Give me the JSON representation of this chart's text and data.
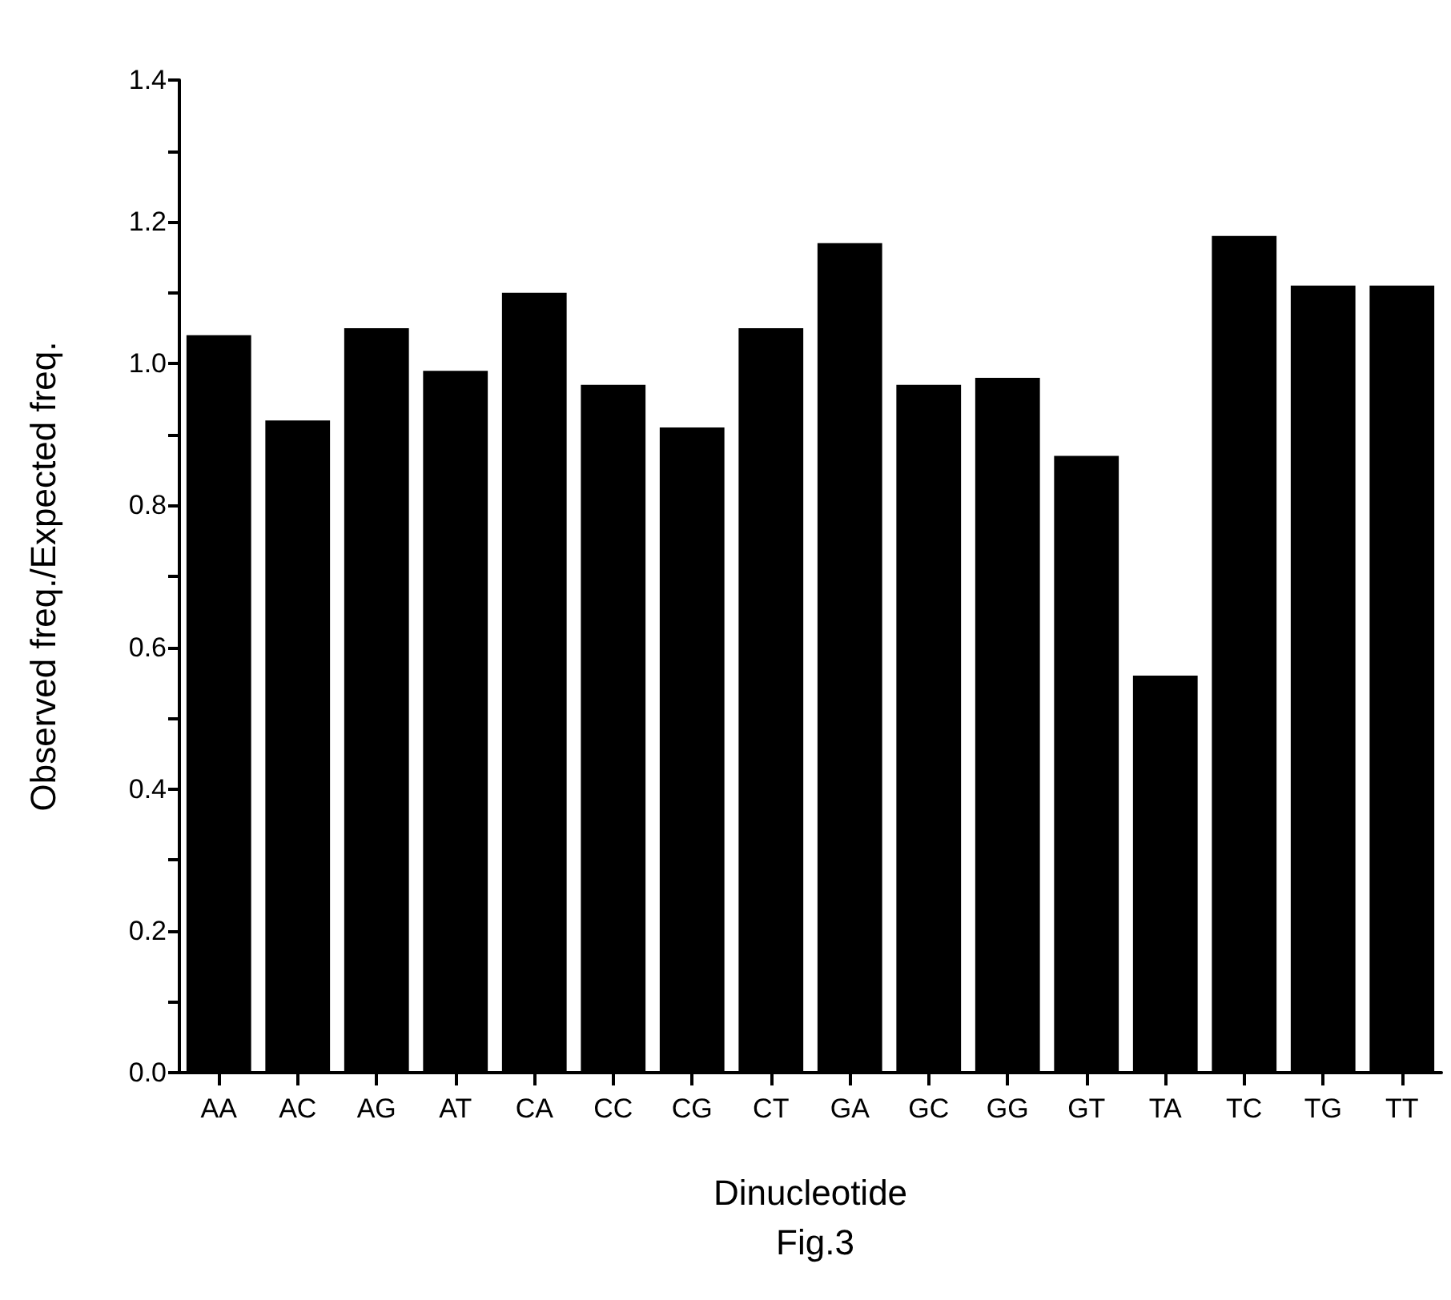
{
  "chart_data": {
    "type": "bar",
    "xlabel": "Dinucleotide",
    "ylabel": "Observed freq./Expected freq.",
    "annotations": [
      "Fig.3"
    ],
    "categories": [
      "AA",
      "AC",
      "AG",
      "AT",
      "CA",
      "CC",
      "CG",
      "CT",
      "GA",
      "GC",
      "GG",
      "GT",
      "TA",
      "TC",
      "TG",
      "TT"
    ],
    "values": [
      1.04,
      0.92,
      1.05,
      0.99,
      1.1,
      0.97,
      0.91,
      1.05,
      1.17,
      0.97,
      0.98,
      0.87,
      0.56,
      1.18,
      1.11,
      1.11
    ],
    "color": "#000000",
    "ylim": [
      0,
      1.4
    ],
    "yticks": [
      {
        "value": 0,
        "label": "0.0"
      },
      {
        "value": 0.1,
        "label": null
      },
      0.2,
      {
        "value": 0.3,
        "label": null
      },
      0.4,
      {
        "value": 0.5,
        "label": null
      },
      0.6,
      {
        "value": 0.7,
        "label": null
      },
      0.8,
      {
        "value": 0.9,
        "label": null
      },
      {
        "value": 1,
        "label": "1.0"
      },
      {
        "value": 1.1,
        "label": null
      },
      1.2,
      {
        "value": 1.3,
        "label": null
      },
      1.4
    ],
    "grid": false
  }
}
